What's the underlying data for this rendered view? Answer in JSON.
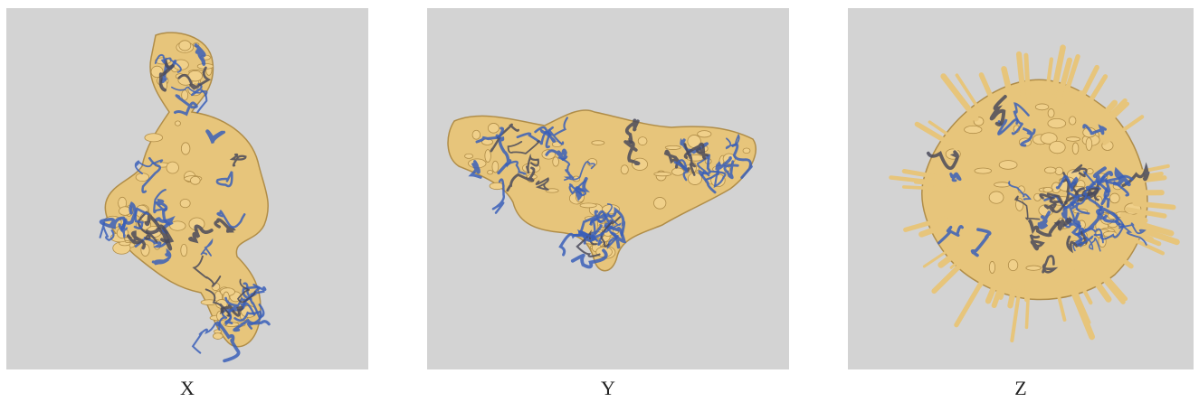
{
  "panels": [
    {
      "label": "X"
    },
    {
      "label": "Y"
    },
    {
      "label": "Z"
    }
  ]
}
